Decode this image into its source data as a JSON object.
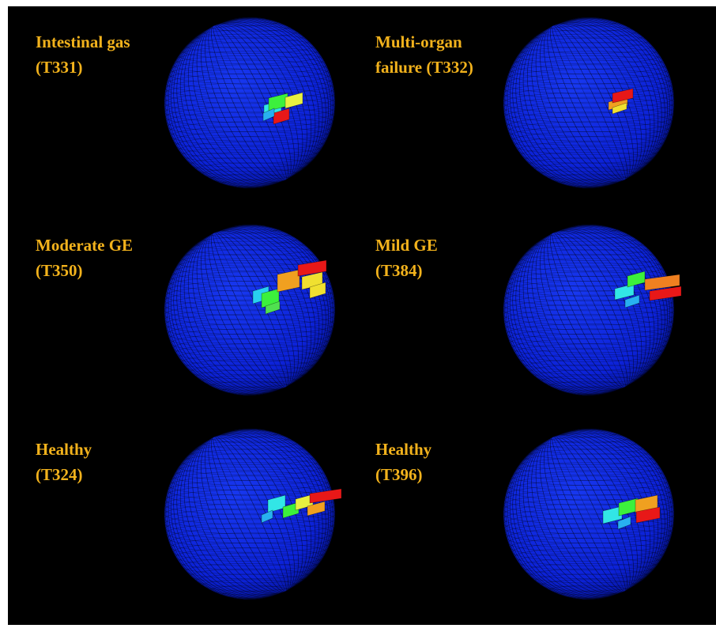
{
  "panels": [
    {
      "label": [
        "Intestinal gas",
        "(T331)"
      ]
    },
    {
      "label": [
        "Multi-organ",
        "failure (T332)"
      ]
    },
    {
      "label": [
        "Moderate GE",
        "(T350)"
      ]
    },
    {
      "label": [
        "Mild GE",
        "(T384)"
      ]
    },
    {
      "label": [
        "Healthy",
        "(T324)"
      ]
    },
    {
      "label": [
        "Healthy",
        "(T396)"
      ]
    }
  ]
}
